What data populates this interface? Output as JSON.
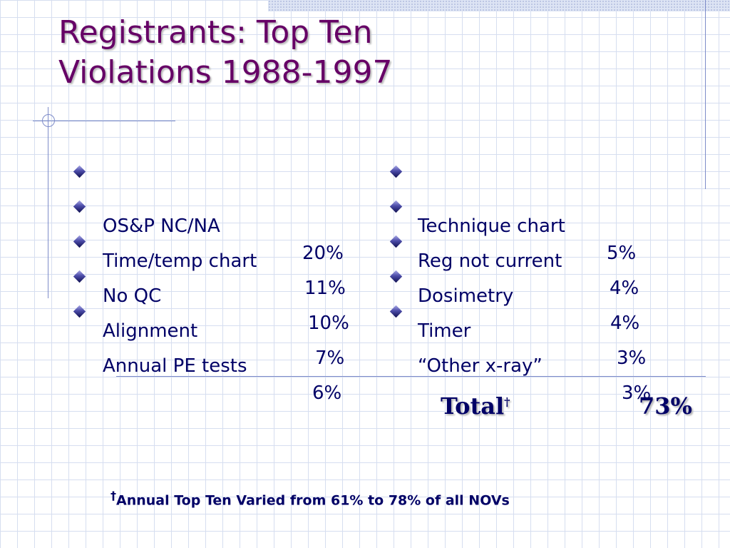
{
  "title": {
    "line1": "Registrants:  Top Ten",
    "line2": "Violations 1988-1997"
  },
  "left_list": [
    {
      "label": "OS&P NC/NA",
      "value": "20%"
    },
    {
      "label": "Time/temp chart",
      "value": "11%"
    },
    {
      "label": "No QC",
      "value": "10%"
    },
    {
      "label": "Alignment",
      "value": "7%"
    },
    {
      "label": "Annual PE tests",
      "value": "6%"
    }
  ],
  "right_list": [
    {
      "label": "Technique chart",
      "value": "5%"
    },
    {
      "label": "Reg not current",
      "value": "4%"
    },
    {
      "label": "Dosimetry",
      "value": "4%"
    },
    {
      "label": "Timer",
      "value": "3%"
    },
    {
      "label": "“Other x-ray”",
      "value": "3%"
    }
  ],
  "total": {
    "label": "Total",
    "dagger": "†",
    "value": "73%"
  },
  "footnote": {
    "dagger": "†",
    "text": "Annual Top Ten Varied from 61% to 78% of all NOVs"
  },
  "colors": {
    "title": "#660066",
    "body_text": "#000066",
    "accent_lines": "#7e8cc9",
    "grid": "#d6def0"
  }
}
